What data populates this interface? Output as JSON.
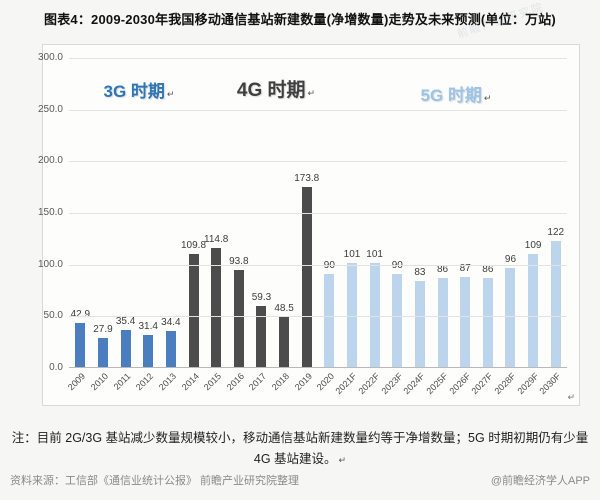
{
  "page": {
    "title": "图表4：2009-2030年我国移动通信基站新建数量(净增数量)走势及未来预测(单位：万站)",
    "note_line1": "注：目前 2G/3G 基站减少数量规模较小，移动通信基站新建数量约等于净增数量；5G 时期初期仍有少量",
    "note_line2": "4G 基站建设。",
    "source": "资料来源：工信部《通信业统计公报》 前瞻产业研究院整理",
    "credit": "@前瞻经济学人APP",
    "watermark": "前瞻产业研究院",
    "return_mark": "↵"
  },
  "chart_data": {
    "type": "bar",
    "title": "2009-2030年我国移动通信基站新建数量(净增数量)走势及未来预测",
    "unit": "万站",
    "ylim": [
      0,
      300
    ],
    "grid": true,
    "yticks": [
      300,
      250,
      200,
      150,
      100,
      50,
      0
    ],
    "ytick_labels": [
      "300.0",
      "250.0",
      "200.0",
      "150.0",
      "100.0",
      "50.0",
      "0.0"
    ],
    "eras": [
      {
        "id": "3g",
        "label": "3G 时期",
        "text_color": "#2E75B6",
        "bar_color": "#4A7EBE"
      },
      {
        "id": "4g",
        "label": "4G 时期",
        "text_color": "#3F3F3F",
        "bar_color": "#4C4C4C"
      },
      {
        "id": "5g",
        "label": "5G 时期",
        "text_color": "#9DC3E6",
        "bar_color": "#BCD5EC"
      }
    ],
    "points": [
      {
        "x": "2009",
        "y": 42.9,
        "label": "42.9",
        "era": "3g"
      },
      {
        "x": "2010",
        "y": 27.9,
        "label": "27.9",
        "era": "3g"
      },
      {
        "x": "2011",
        "y": 35.4,
        "label": "35.4",
        "era": "3g"
      },
      {
        "x": "2012",
        "y": 31.4,
        "label": "31.4",
        "era": "3g"
      },
      {
        "x": "2013",
        "y": 34.4,
        "label": "34.4",
        "era": "3g"
      },
      {
        "x": "2014",
        "y": 109.8,
        "label": "109.8",
        "era": "4g"
      },
      {
        "x": "2015",
        "y": 114.8,
        "label": "114.8",
        "era": "4g"
      },
      {
        "x": "2016",
        "y": 93.8,
        "label": "93.8",
        "era": "4g"
      },
      {
        "x": "2017",
        "y": 59.3,
        "label": "59.3",
        "era": "4g"
      },
      {
        "x": "2018",
        "y": 48.5,
        "label": "48.5",
        "era": "4g"
      },
      {
        "x": "2019",
        "y": 173.8,
        "label": "173.8",
        "era": "4g"
      },
      {
        "x": "2020",
        "y": 90,
        "label": "90",
        "era": "5g"
      },
      {
        "x": "2021F",
        "y": 101,
        "label": "101",
        "era": "5g"
      },
      {
        "x": "2022F",
        "y": 101,
        "label": "101",
        "era": "5g"
      },
      {
        "x": "2023F",
        "y": 90,
        "label": "90",
        "era": "5g"
      },
      {
        "x": "2024F",
        "y": 83,
        "label": "83",
        "era": "5g"
      },
      {
        "x": "2025F",
        "y": 86,
        "label": "86",
        "era": "5g"
      },
      {
        "x": "2026F",
        "y": 87,
        "label": "87",
        "era": "5g"
      },
      {
        "x": "2027F",
        "y": 86,
        "label": "86",
        "era": "5g"
      },
      {
        "x": "2028F",
        "y": 96,
        "label": "96",
        "era": "5g"
      },
      {
        "x": "2029F",
        "y": 109,
        "label": "109",
        "era": "5g"
      },
      {
        "x": "2030F",
        "y": 122,
        "label": "122",
        "era": "5g"
      }
    ]
  }
}
